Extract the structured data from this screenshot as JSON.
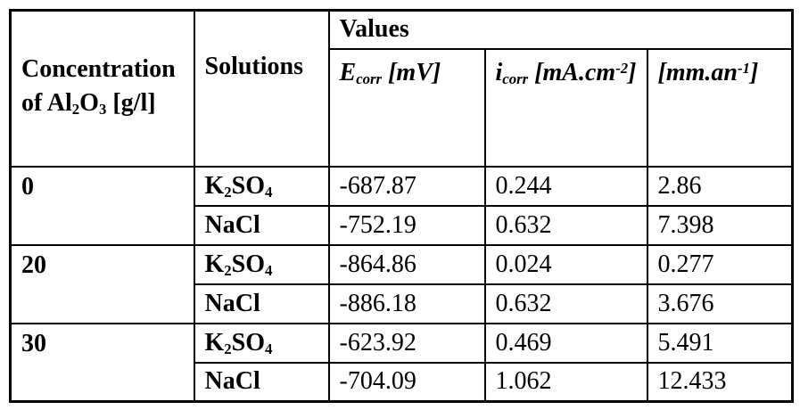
{
  "table": {
    "header": {
      "concentration_line1": "Concentration",
      "concentration_line2": {
        "pre": "of Al",
        "sub_a": "2",
        "mid": "O",
        "sub_b": "3",
        "post": " [g/l]"
      },
      "solutions": "Solutions",
      "values_group": "Values",
      "ecorr": {
        "symbol": "E",
        "subscript": "corr",
        "unit": " [mV]"
      },
      "icorr": {
        "symbol": "i",
        "subscript": "corr",
        "unit_pre": " [mA.cm",
        "superscript": "-2",
        "unit_post": "]"
      },
      "rate": {
        "unit_pre": "[mm.an",
        "superscript": "-1",
        "unit_post": "]"
      }
    },
    "groups": [
      {
        "concentration": "0",
        "rows": [
          {
            "solution": {
              "base1": "K",
              "sub1": "2",
              "base2": "SO",
              "sub2": "4"
            },
            "ecorr": "-687.87",
            "icorr": "0.244",
            "rate": "2.86"
          },
          {
            "solution": {
              "base1": "NaCl",
              "sub1": "",
              "base2": "",
              "sub2": ""
            },
            "ecorr": "-752.19",
            "icorr": "0.632",
            "rate": "7.398"
          }
        ]
      },
      {
        "concentration": "20",
        "rows": [
          {
            "solution": {
              "base1": "K",
              "sub1": "2",
              "base2": "SO",
              "sub2": "4"
            },
            "ecorr": "-864.86",
            "icorr": "0.024",
            "rate": "0.277"
          },
          {
            "solution": {
              "base1": "NaCl",
              "sub1": "",
              "base2": "",
              "sub2": ""
            },
            "ecorr": "-886.18",
            "icorr": "0.632",
            "rate": "3.676"
          }
        ]
      },
      {
        "concentration": "30",
        "rows": [
          {
            "solution": {
              "base1": "K",
              "sub1": "2",
              "base2": "SO",
              "sub2": "4"
            },
            "ecorr": "-623.92",
            "icorr": "0.469",
            "rate": "5.491"
          },
          {
            "solution": {
              "base1": "NaCl",
              "sub1": "",
              "base2": "",
              "sub2": ""
            },
            "ecorr": "-704.09",
            "icorr": "1.062",
            "rate": "12.433"
          }
        ]
      }
    ]
  },
  "chart_data": {
    "type": "table",
    "values_group_label": "Values",
    "columns": [
      "Concentration of Al2O3 [g/l]",
      "Solutions",
      "Ecorr [mV]",
      "icorr [mA.cm-2]",
      "[mm.an-1]"
    ],
    "rows": [
      [
        "0",
        "K2SO4",
        -687.87,
        0.244,
        2.86
      ],
      [
        "0",
        "NaCl",
        -752.19,
        0.632,
        7.398
      ],
      [
        "20",
        "K2SO4",
        -864.86,
        0.024,
        0.277
      ],
      [
        "20",
        "NaCl",
        -886.18,
        0.632,
        3.676
      ],
      [
        "30",
        "K2SO4",
        -623.92,
        0.469,
        5.491
      ],
      [
        "30",
        "NaCl",
        -704.09,
        1.062,
        12.433
      ]
    ]
  }
}
